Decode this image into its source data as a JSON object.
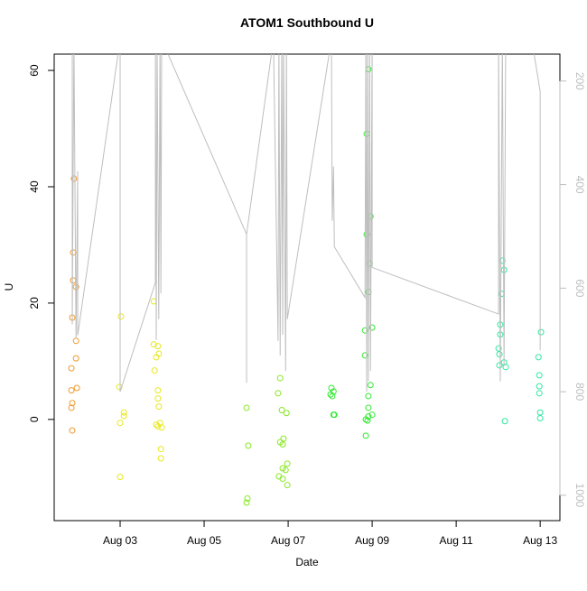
{
  "chart_data": {
    "type": "scatter",
    "title": "ATOM1 Southbound U",
    "xlabel": "Date",
    "ylabel": "U",
    "xlim": [
      1.43,
      13.47
    ],
    "xticks": [
      {
        "value": 3,
        "label": "Aug 03"
      },
      {
        "value": 5,
        "label": "Aug 05"
      },
      {
        "value": 7,
        "label": "Aug 07"
      },
      {
        "value": 9,
        "label": "Aug 09"
      },
      {
        "value": 11,
        "label": "Aug 11"
      },
      {
        "value": 13,
        "label": "Aug 13"
      }
    ],
    "ylim": [
      -17.4,
      62.8
    ],
    "yticks": [
      0,
      20,
      40,
      60
    ],
    "y2lim": [
      1049,
      148
    ],
    "y2ticks": [
      200,
      400,
      600,
      800,
      1000
    ],
    "y2color": "#bebebe",
    "series": [
      {
        "color": "#ee9a2e",
        "x": [
          1.9,
          1.88,
          1.88,
          1.95,
          1.86,
          1.95,
          1.95,
          1.84,
          1.97,
          1.84,
          1.86,
          1.84,
          1.86
        ],
        "values": [
          41.4,
          28.7,
          23.9,
          22.8,
          17.5,
          13.5,
          10.5,
          8.8,
          5.4,
          5.0,
          2.8,
          2.0,
          -1.9
        ]
      },
      {
        "color": "#e8e820",
        "x": [
          3.02,
          2.98,
          3.09,
          3.09,
          3.0,
          3.0,
          3.8,
          3.8,
          3.9,
          3.86,
          3.92,
          3.82,
          3.9,
          3.9,
          3.92,
          3.86,
          3.95,
          3.9,
          3.99,
          3.97,
          3.97
        ],
        "values": [
          17.7,
          5.6,
          1.2,
          0.6,
          -0.6,
          -9.9,
          20.3,
          12.9,
          12.6,
          10.7,
          11.3,
          8.4,
          5.0,
          3.6,
          2.2,
          -0.9,
          -0.6,
          -1.2,
          -1.4,
          -5.1,
          -6.7
        ]
      },
      {
        "color": "#88e822",
        "x": [
          6.01,
          6.05,
          6.03,
          6.01,
          6.81,
          6.76,
          6.85,
          6.96,
          6.89,
          6.81,
          6.87,
          6.98,
          6.87,
          6.94,
          6.78,
          6.87,
          6.98
        ],
        "values": [
          2.0,
          -4.5,
          -13.6,
          -14.3,
          7.1,
          4.5,
          1.6,
          1.1,
          -3.3,
          -3.9,
          -4.3,
          -7.6,
          -8.4,
          -8.7,
          -9.8,
          -10.2,
          -11.3
        ]
      },
      {
        "color": "#30e830",
        "x": [
          8.03,
          8.08,
          8.01,
          8.05,
          8.08,
          8.1,
          8.91,
          8.87,
          8.96,
          8.87,
          8.94,
          8.91,
          9.0,
          8.83,
          8.83,
          8.96,
          8.91,
          8.91,
          9.0,
          8.91,
          8.85,
          8.89,
          8.85
        ],
        "values": [
          5.4,
          4.8,
          4.3,
          4.0,
          0.8,
          0.8,
          60.2,
          49.1,
          34.9,
          31.8,
          26.8,
          21.9,
          15.8,
          15.3,
          11.0,
          5.9,
          4.0,
          2.0,
          0.8,
          0.5,
          0.0,
          -0.2,
          -2.8
        ]
      },
      {
        "color": "#30e8a0",
        "x": [
          12.1,
          12.14,
          12.08,
          12.05,
          12.05,
          12.01,
          12.03,
          12.14,
          12.03,
          12.18,
          12.16,
          13.02,
          12.96,
          12.98,
          12.98,
          12.98,
          13.0,
          13.0
        ],
        "values": [
          27.3,
          25.7,
          21.6,
          16.3,
          14.6,
          12.2,
          11.2,
          9.8,
          9.3,
          9.0,
          -0.3,
          15.0,
          10.7,
          7.6,
          5.7,
          4.5,
          1.2,
          0.2
        ]
      },
      {
        "type": "line",
        "axis": "y2",
        "color": "#bebebe",
        "x": [
          1.86,
          1.86,
          1.9,
          1.95,
          1.99,
          1.99,
          3.0,
          3.0,
          3.84,
          3.84,
          3.86,
          3.88,
          3.92,
          3.95,
          3.97,
          3.99,
          6.01,
          6.01,
          6.01,
          6.65,
          6.76,
          6.78,
          6.81,
          6.85,
          6.87,
          6.89,
          6.94,
          6.96,
          6.98,
          8.03,
          8.05,
          8.08,
          8.1,
          8.83,
          8.85,
          8.87,
          8.89,
          8.91,
          8.94,
          8.96,
          9.0,
          9.0,
          12.01,
          12.01,
          12.05,
          12.1,
          12.14,
          12.18,
          12.8,
          13.0,
          13.0
        ],
        "values": [
          120,
          670,
          120,
          697,
          374,
          691,
          120,
          800,
          589,
          120,
          700,
          120,
          660,
          120,
          610,
          120,
          496,
          783,
          496,
          120,
          702,
          120,
          730,
          120,
          690,
          120,
          760,
          120,
          660,
          120,
          470,
          365,
          520,
          618,
          120,
          800,
          120,
          780,
          120,
          760,
          120,
          560,
          650,
          120,
          780,
          120,
          750,
          120,
          120,
          220,
          720
        ]
      }
    ]
  }
}
